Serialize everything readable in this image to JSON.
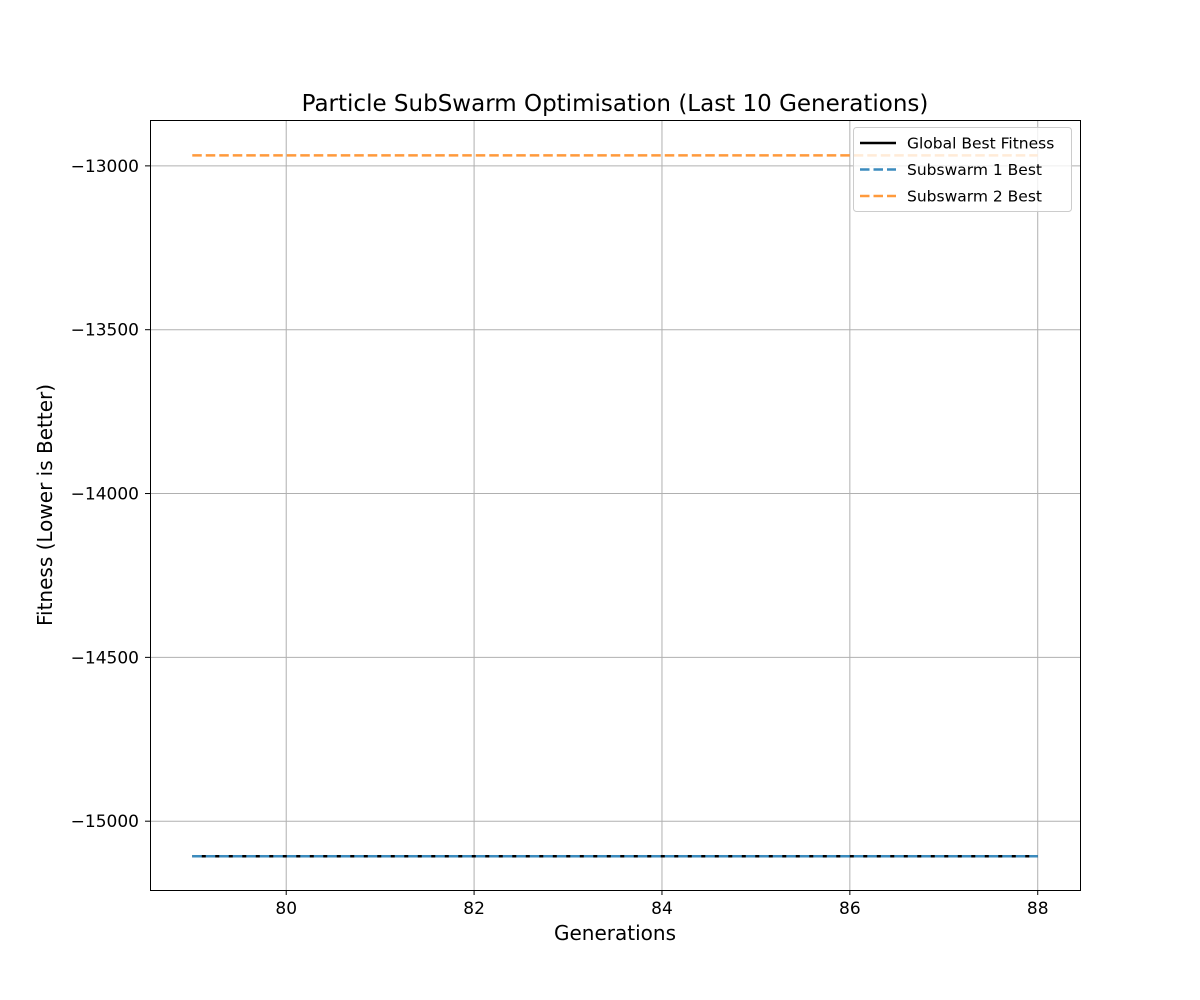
{
  "chart_data": {
    "type": "line",
    "title": "Particle SubSwarm Optimisation (Last 10 Generations)",
    "xlabel": "Generations",
    "ylabel": "Fitness (Lower is Better)",
    "xlim": [
      78.55,
      88.45
    ],
    "ylim": [
      -15210,
      -12860
    ],
    "xticks": [
      80,
      82,
      84,
      86,
      88
    ],
    "yticks": [
      -13000,
      -13500,
      -14000,
      -14500,
      -15000
    ],
    "xtick_labels": [
      "80",
      "82",
      "84",
      "86",
      "88"
    ],
    "ytick_labels": [
      "−13000",
      "−13500",
      "−14000",
      "−14500",
      "−15000"
    ],
    "grid": true,
    "legend_position": "top-right",
    "x": [
      79,
      80,
      81,
      82,
      83,
      84,
      85,
      86,
      87,
      88
    ],
    "series": [
      {
        "name": "Global Best Fitness",
        "color": "#000000",
        "dash": "solid",
        "values": [
          -15107,
          -15107,
          -15107,
          -15107,
          -15107,
          -15107,
          -15107,
          -15107,
          -15107,
          -15107
        ]
      },
      {
        "name": "Subswarm 1 Best",
        "color": "#3b8bbe",
        "dash": "dashed",
        "values": [
          -15107,
          -15107,
          -15107,
          -15107,
          -15107,
          -15107,
          -15107,
          -15107,
          -15107,
          -15107
        ]
      },
      {
        "name": "Subswarm 2 Best",
        "color": "#ff9a3c",
        "dash": "dashed",
        "values": [
          -12968,
          -12968,
          -12968,
          -12968,
          -12968,
          -12968,
          -12968,
          -12968,
          -12968,
          -12968
        ]
      }
    ]
  }
}
